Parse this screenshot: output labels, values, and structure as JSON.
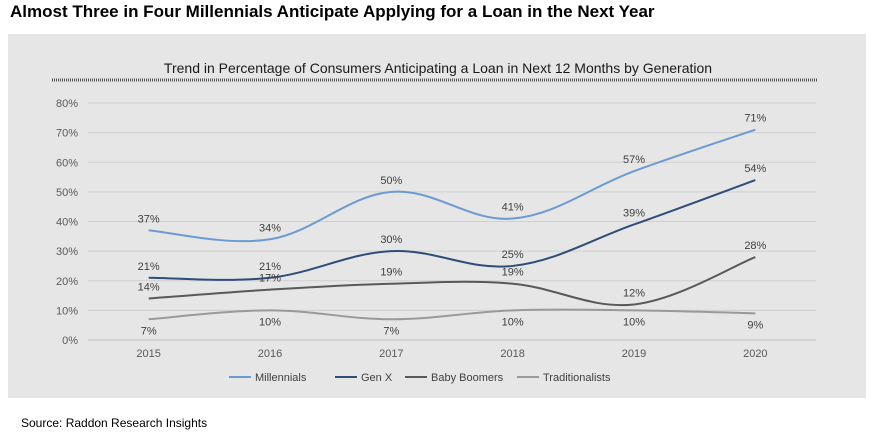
{
  "headline": "Almost Three in Four Millennials Anticipate Applying for a Loan in the Next Year",
  "source": "Source: Raddon Research Insights",
  "chart_data": {
    "type": "line",
    "title": "Trend in Percentage of Consumers Anticipating a Loan in Next 12 Months by Generation",
    "categories": [
      "2015",
      "2016",
      "2017",
      "2018",
      "2019",
      "2020"
    ],
    "ylim": [
      0,
      80
    ],
    "yticks": [
      "0%",
      "10%",
      "20%",
      "30%",
      "40%",
      "50%",
      "60%",
      "70%",
      "80%"
    ],
    "grid": true,
    "legend_position": "bottom",
    "series": [
      {
        "name": "Millennials",
        "color": "#6b9bd2",
        "values": [
          37,
          34,
          50,
          41,
          57,
          71
        ],
        "labels": [
          "37%",
          "34%",
          "50%",
          "41%",
          "57%",
          "71%"
        ],
        "label_pos": [
          "above",
          "above",
          "above",
          "above",
          "above",
          "above"
        ]
      },
      {
        "name": "Gen X",
        "color": "#2e4d78",
        "values": [
          21,
          21,
          30,
          25,
          39,
          54
        ],
        "labels": [
          "21%",
          "21%",
          "30%",
          "25%",
          "39%",
          "54%"
        ],
        "label_pos": [
          "above",
          "above",
          "above",
          "above",
          "above",
          "above"
        ]
      },
      {
        "name": "Baby Boomers",
        "color": "#595959",
        "values": [
          14,
          17,
          19,
          19,
          12,
          28
        ],
        "labels": [
          "14%",
          "17%",
          "19%",
          "19%",
          "12%",
          "28%"
        ],
        "label_pos": [
          "above",
          "above",
          "above",
          "above",
          "above",
          "above"
        ]
      },
      {
        "name": "Traditionalists",
        "color": "#9a9a9a",
        "values": [
          7,
          10,
          7,
          10,
          10,
          9
        ],
        "labels": [
          "7%",
          "10%",
          "7%",
          "10%",
          "10%",
          "9%"
        ],
        "label_pos": [
          "below",
          "below",
          "below",
          "below",
          "below",
          "below"
        ]
      }
    ]
  }
}
